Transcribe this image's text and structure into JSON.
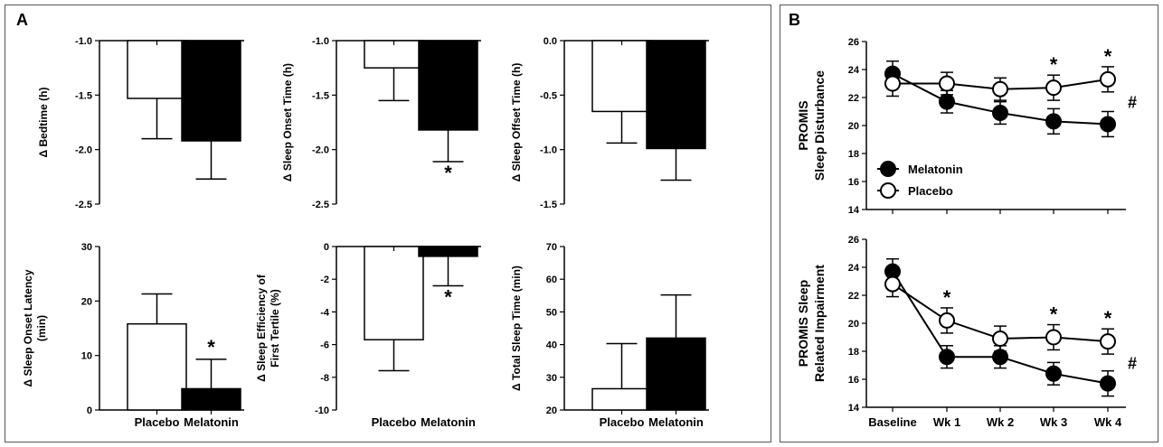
{
  "panels": {
    "a": "A",
    "b": "B"
  },
  "chart_data": [
    {
      "id": "bedtime",
      "type": "bar",
      "categories": [
        "Placebo",
        "Melatonin"
      ],
      "values": [
        -1.53,
        -1.92
      ],
      "errors": [
        0.37,
        0.35
      ],
      "ylabel": "Δ Bedtime (h)",
      "ylim": [
        -2.5,
        -1.0
      ],
      "yticks": [
        "-1.0",
        "-1.5",
        "-2.0",
        "-2.5"
      ],
      "significance": [
        "",
        ""
      ]
    },
    {
      "id": "sleep-onset-time",
      "type": "bar",
      "categories": [
        "Placebo",
        "Melatonin"
      ],
      "values": [
        -1.25,
        -1.82
      ],
      "errors": [
        0.3,
        0.29
      ],
      "ylabel": "Δ Sleep Onset Time (h)",
      "ylim": [
        -2.5,
        -1.0
      ],
      "yticks": [
        "-1.0",
        "-1.5",
        "-2.0",
        "-2.5"
      ],
      "significance": [
        "",
        "*"
      ]
    },
    {
      "id": "sleep-offset-time",
      "type": "bar",
      "categories": [
        "Placebo",
        "Melatonin"
      ],
      "values": [
        -0.65,
        -0.99
      ],
      "errors": [
        0.29,
        0.29
      ],
      "ylabel": "Δ Sleep Offset Time (h)",
      "ylim": [
        -1.5,
        0.0
      ],
      "yticks": [
        "0.0",
        "-0.5",
        "-1.0",
        "-1.5"
      ],
      "significance": [
        "",
        ""
      ]
    },
    {
      "id": "sleep-onset-latency",
      "type": "bar",
      "categories": [
        "Placebo",
        "Melatonin"
      ],
      "values": [
        15.8,
        3.9
      ],
      "errors": [
        5.5,
        5.4
      ],
      "ylabel": [
        "Δ Sleep Onset Latency",
        "(min)"
      ],
      "ylim": [
        0,
        30
      ],
      "yticks": [
        "30",
        "20",
        "10",
        "0"
      ],
      "significance": [
        "",
        "*"
      ]
    },
    {
      "id": "sleep-efficiency",
      "type": "bar",
      "categories": [
        "Placebo",
        "Melatonin"
      ],
      "values": [
        -5.7,
        -0.6
      ],
      "errors": [
        1.9,
        1.8
      ],
      "ylabel": [
        "Δ Sleep Efficiency of",
        "First Tertile (%)"
      ],
      "ylim": [
        -10,
        0
      ],
      "yticks": [
        "0",
        "-2",
        "-4",
        "-6",
        "-8",
        "-10"
      ],
      "significance": [
        "",
        "*"
      ]
    },
    {
      "id": "total-sleep-time",
      "type": "bar",
      "categories": [
        "Placebo",
        "Melatonin"
      ],
      "values": [
        26.5,
        42.0
      ],
      "errors": [
        13.8,
        13.2
      ],
      "ylabel": "Δ Total Sleep Time (min)",
      "ylim": [
        20,
        70
      ],
      "yticks": [
        "70",
        "60",
        "50",
        "40",
        "30",
        "20"
      ],
      "significance": [
        "",
        ""
      ]
    },
    {
      "id": "promis-sleep-disturbance",
      "type": "line",
      "x": [
        "Baseline",
        "Wk 1",
        "Wk 2",
        "Wk 3",
        "Wk 4"
      ],
      "ylabel": [
        "PROMIS",
        "Sleep Disturbance"
      ],
      "ylim": [
        14,
        26
      ],
      "yticks": [
        "26",
        "24",
        "22",
        "20",
        "18",
        "16",
        "14"
      ],
      "series": [
        {
          "name": "Melatonin",
          "values": [
            23.7,
            21.7,
            20.9,
            20.3,
            20.1
          ],
          "errors": [
            0.9,
            0.8,
            0.8,
            0.9,
            0.9
          ],
          "fill": "#000000"
        },
        {
          "name": "Placebo",
          "values": [
            23.0,
            23.0,
            22.6,
            22.7,
            23.3
          ],
          "errors": [
            0.9,
            0.8,
            0.8,
            0.9,
            0.9
          ],
          "fill": "#ffffff"
        }
      ],
      "stars": [
        "",
        "",
        "",
        "*",
        "*"
      ],
      "hash": "#"
    },
    {
      "id": "promis-sleep-related-impairment",
      "type": "line",
      "x": [
        "Baseline",
        "Wk 1",
        "Wk 2",
        "Wk 3",
        "Wk 4"
      ],
      "ylabel": [
        "PROMIS Sleep",
        "Related Impairment"
      ],
      "ylim": [
        14,
        26
      ],
      "yticks": [
        "26",
        "24",
        "22",
        "20",
        "18",
        "16",
        "14"
      ],
      "series": [
        {
          "name": "Melatonin",
          "values": [
            23.7,
            17.6,
            17.6,
            16.4,
            15.7
          ],
          "errors": [
            0.9,
            0.8,
            0.8,
            0.8,
            0.9
          ],
          "fill": "#000000"
        },
        {
          "name": "Placebo",
          "values": [
            22.8,
            20.2,
            18.9,
            19.0,
            18.7
          ],
          "errors": [
            0.9,
            0.9,
            0.9,
            0.9,
            0.9
          ],
          "fill": "#ffffff"
        }
      ],
      "stars": [
        "",
        "*",
        "",
        "*",
        "*"
      ],
      "hash": "#"
    }
  ],
  "legend": [
    {
      "label": "Melatonin",
      "fill": "#000000"
    },
    {
      "label": "Placebo",
      "fill": "#ffffff"
    }
  ]
}
